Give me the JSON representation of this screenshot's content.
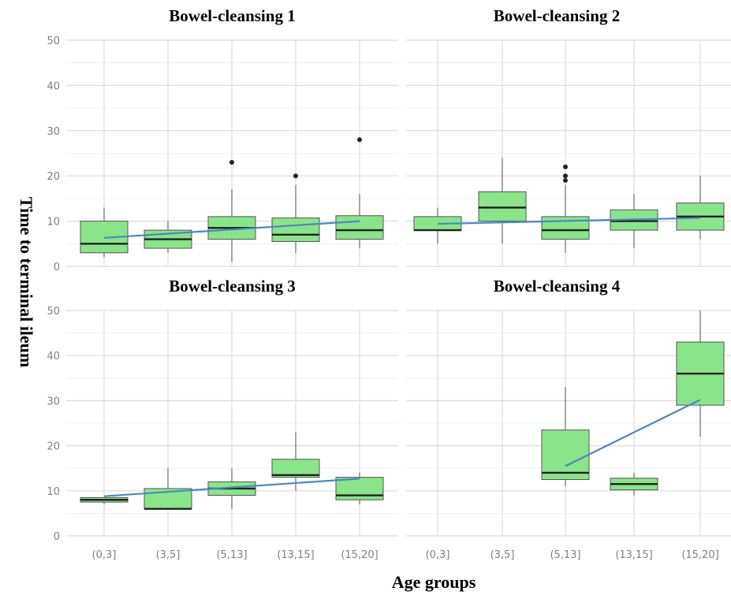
{
  "chart_data": {
    "type": "box",
    "ylabel": "Time to terminal ileum",
    "xlabel": "Age groups",
    "categories": [
      "(0,3]",
      "(3,5]",
      "(5,13]",
      "(13,15]",
      "(15,20]"
    ],
    "ylim": [
      0,
      50
    ],
    "yticks": [
      0,
      10,
      20,
      30,
      40,
      50
    ],
    "grid": true,
    "facets": [
      {
        "title": "Bowel-cleansing 1",
        "boxes": [
          {
            "category": "(0,3]",
            "low": 2,
            "q1": 3,
            "median": 5,
            "q3": 10,
            "high": 13,
            "outliers": []
          },
          {
            "category": "(3,5]",
            "low": 3,
            "q1": 4,
            "median": 6,
            "q3": 8,
            "high": 10,
            "outliers": []
          },
          {
            "category": "(5,13]",
            "low": 1,
            "q1": 6,
            "median": 8.5,
            "q3": 11,
            "high": 17,
            "outliers": [
              23
            ]
          },
          {
            "category": "(13,15]",
            "low": 3,
            "q1": 5.5,
            "median": 7,
            "q3": 10.7,
            "high": 18,
            "outliers": [
              20
            ]
          },
          {
            "category": "(15,20]",
            "low": 4,
            "q1": 6,
            "median": 8,
            "q3": 11.2,
            "high": 16,
            "outliers": [
              28
            ]
          }
        ],
        "trend": [
          6.3,
          10
        ]
      },
      {
        "title": "Bowel-cleansing 2",
        "boxes": [
          {
            "category": "(0,3]",
            "low": 5,
            "q1": 8,
            "median": 8,
            "q3": 11,
            "high": 13,
            "outliers": []
          },
          {
            "category": "(3,5]",
            "low": 5,
            "q1": 10,
            "median": 13,
            "q3": 16.5,
            "high": 24,
            "outliers": []
          },
          {
            "category": "(5,13]",
            "low": 3,
            "q1": 6,
            "median": 8,
            "q3": 11,
            "high": 18,
            "outliers": [
              19,
              20,
              22
            ]
          },
          {
            "category": "(13,15]",
            "low": 4,
            "q1": 8,
            "median": 10,
            "q3": 12.5,
            "high": 16,
            "outliers": []
          },
          {
            "category": "(15,20]",
            "low": 6,
            "q1": 8,
            "median": 11,
            "q3": 14,
            "high": 20,
            "outliers": []
          }
        ],
        "trend": [
          9.4,
          10.7
        ]
      },
      {
        "title": "Bowel-cleansing 3",
        "boxes": [
          {
            "category": "(0,3]",
            "low": 7,
            "q1": 7.5,
            "median": 8,
            "q3": 8.5,
            "high": 8.5,
            "outliers": []
          },
          {
            "category": "(3,5]",
            "low": 6,
            "q1": 6,
            "median": 6,
            "q3": 10.5,
            "high": 15,
            "outliers": []
          },
          {
            "category": "(5,13]",
            "low": 6,
            "q1": 9,
            "median": 10.5,
            "q3": 12,
            "high": 15,
            "outliers": []
          },
          {
            "category": "(13,15]",
            "low": 10,
            "q1": 13,
            "median": 13.5,
            "q3": 17,
            "high": 23,
            "outliers": []
          },
          {
            "category": "(15,20]",
            "low": 7,
            "q1": 8,
            "median": 9,
            "q3": 13,
            "high": 14,
            "outliers": []
          }
        ],
        "trend": [
          8.8,
          12.7
        ]
      },
      {
        "title": "Bowel-cleansing 4",
        "boxes": [
          {
            "category": "(5,13]",
            "low": 11,
            "q1": 12.5,
            "median": 14,
            "q3": 23.5,
            "high": 33,
            "outliers": []
          },
          {
            "category": "(13,15]",
            "low": 9,
            "q1": 10.2,
            "median": 11.5,
            "q3": 12.8,
            "high": 14,
            "outliers": []
          },
          {
            "category": "(15,20]",
            "low": 22,
            "q1": 29,
            "median": 36,
            "q3": 43,
            "high": 50,
            "outliers": []
          }
        ],
        "trend_from": "(5,13]",
        "trend": [
          15.5,
          30.2
        ]
      }
    ],
    "colors": {
      "box_fill": "#8ae48a",
      "trend": "#4a88c2"
    }
  }
}
